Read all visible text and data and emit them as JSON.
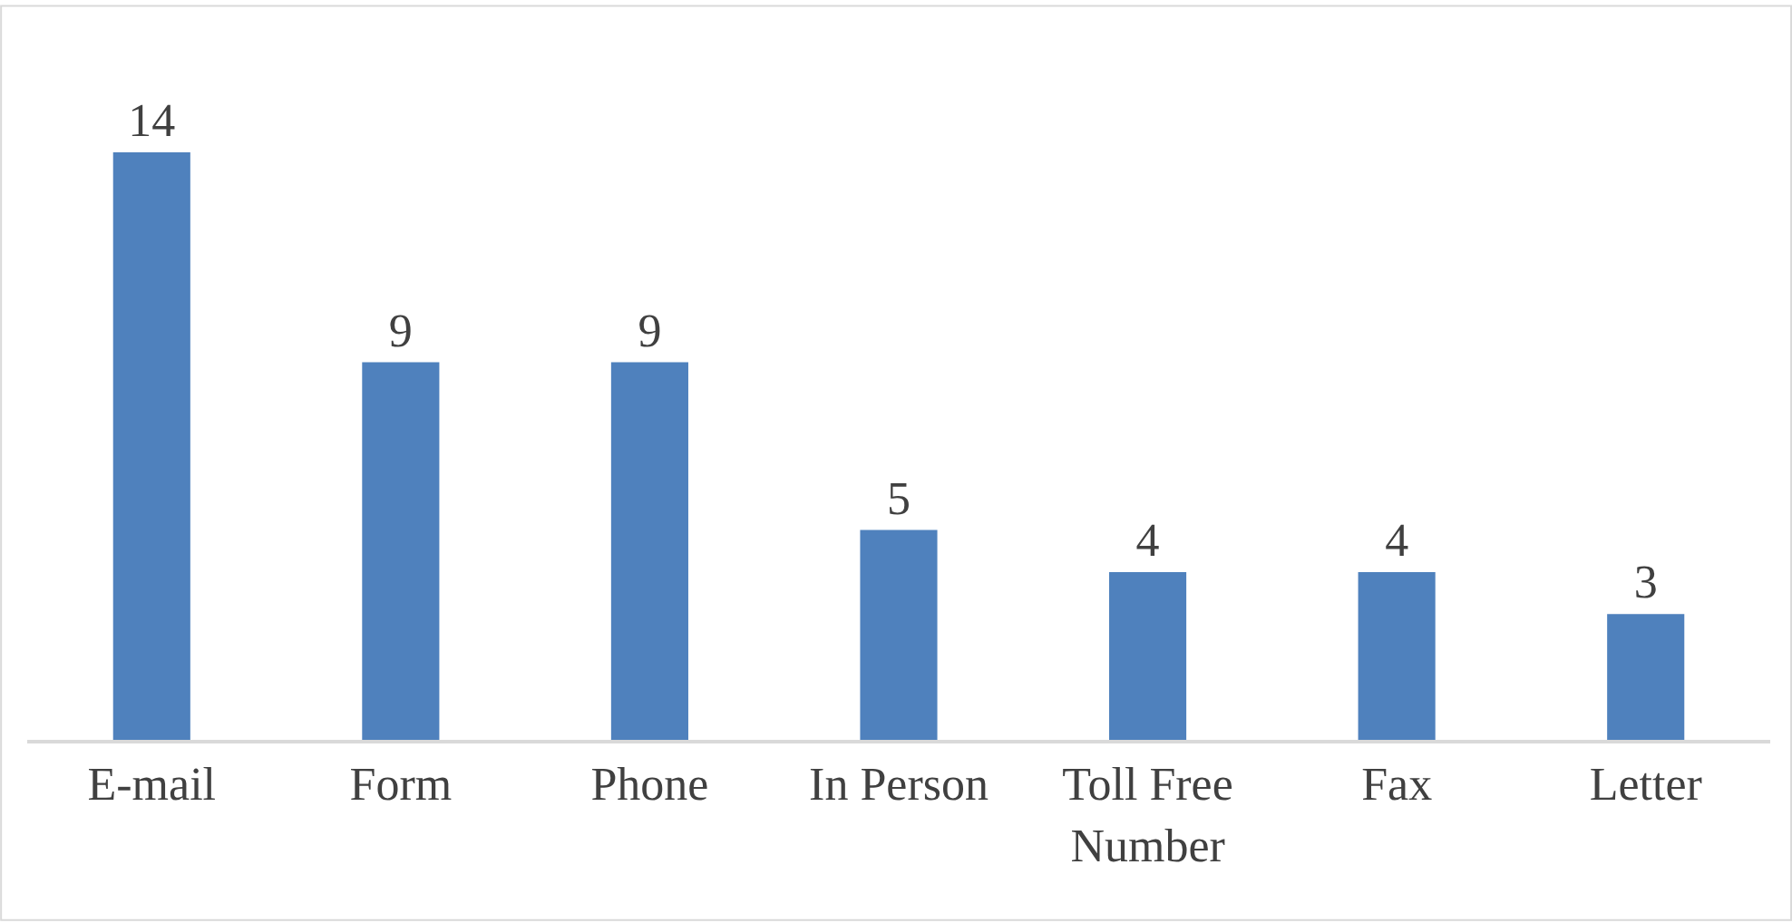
{
  "chart_data": {
    "type": "bar",
    "categories": [
      "E-mail",
      "Form",
      "Phone",
      "In Person",
      "Toll Free Number",
      "Fax",
      "Letter"
    ],
    "values": [
      14,
      9,
      9,
      5,
      4,
      4,
      3
    ],
    "color": "#4f81bd",
    "data_labels": true,
    "legend": false
  }
}
